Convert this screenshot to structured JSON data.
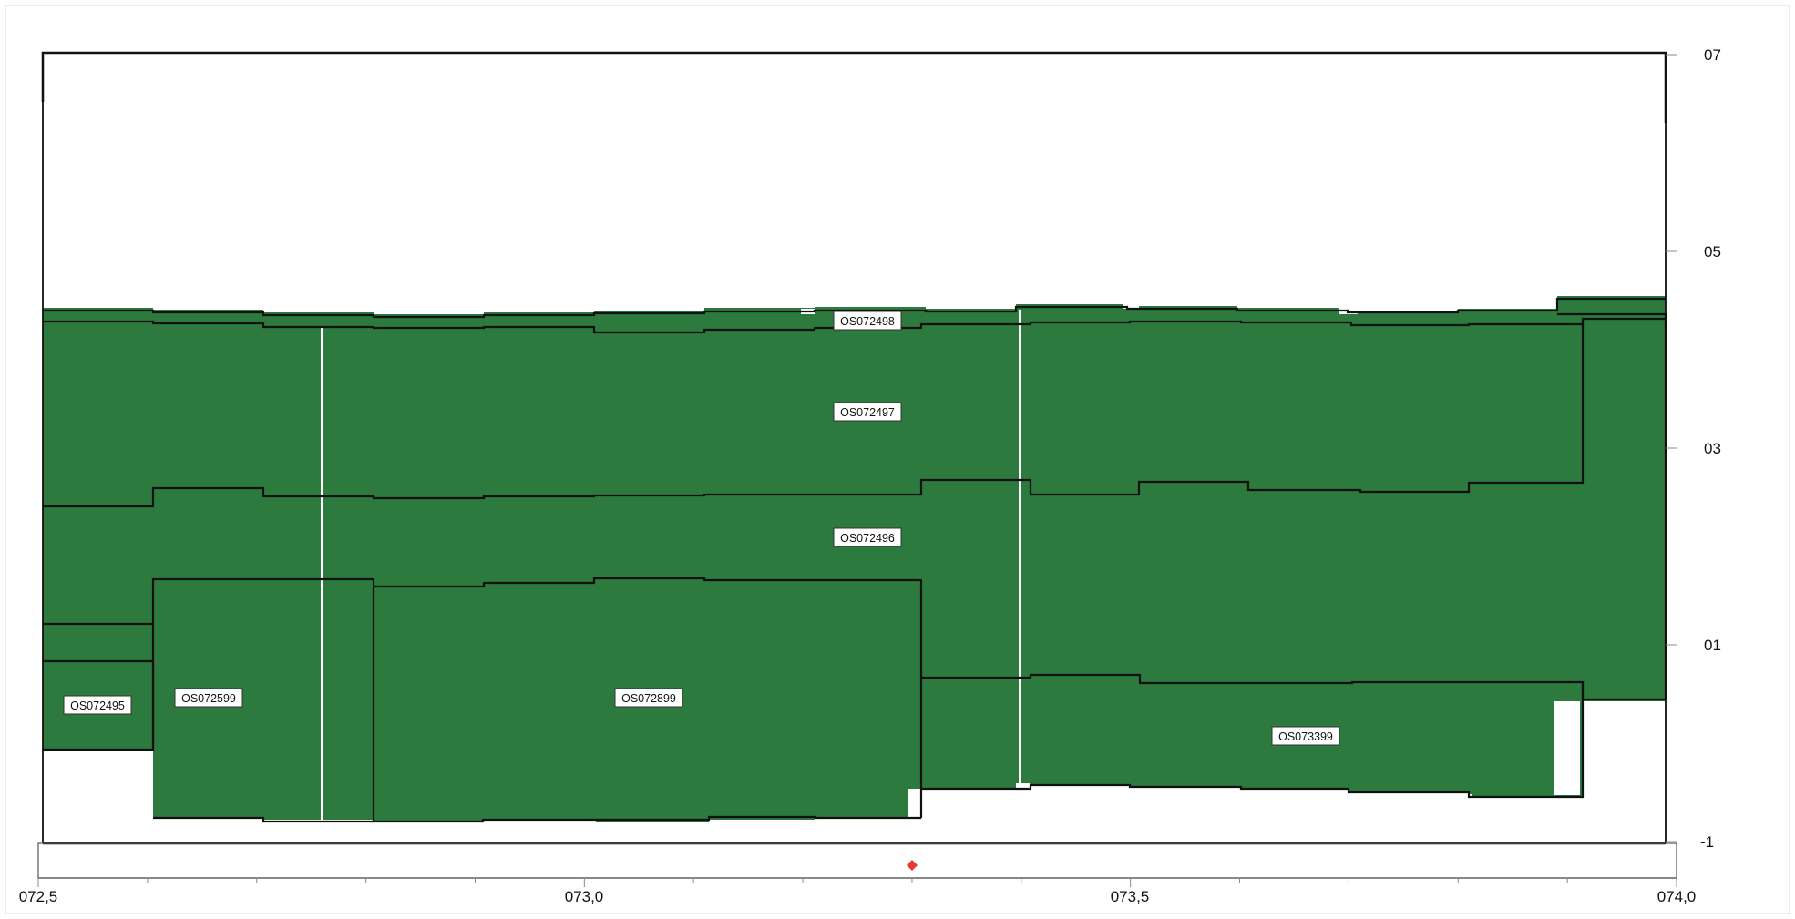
{
  "colors": {
    "coverage": "#2d7a3f",
    "outline": "#111111",
    "frame": "#111111",
    "marker": "#e53935",
    "background": "#ffffff"
  },
  "x_axis": {
    "ticks": [
      "072,5",
      "073,0",
      "073,5",
      "074,0"
    ]
  },
  "y_axis": {
    "ticks": [
      "07",
      "05",
      "03",
      "01",
      "-1"
    ]
  },
  "sections": [
    {
      "id": "OS072498"
    },
    {
      "id": "OS072497"
    },
    {
      "id": "OS072496"
    },
    {
      "id": "OS072495"
    },
    {
      "id": "OS072599"
    },
    {
      "id": "OS072899"
    },
    {
      "id": "OS073399"
    }
  ],
  "marker": {
    "icon": "diamond-icon"
  }
}
